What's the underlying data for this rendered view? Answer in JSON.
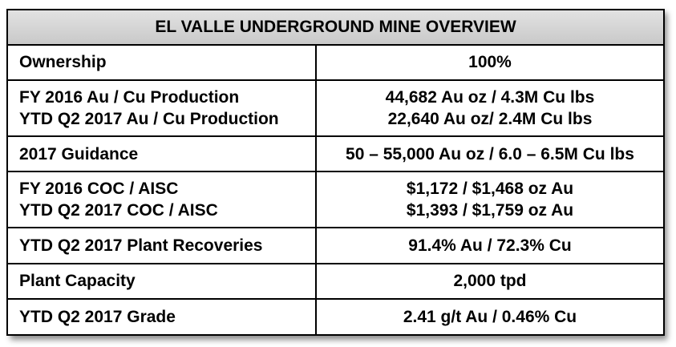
{
  "table": {
    "title": "EL VALLE UNDERGROUND MINE OVERVIEW",
    "rows": [
      {
        "label": [
          "Ownership"
        ],
        "value": [
          "100%"
        ]
      },
      {
        "label": [
          "FY 2016 Au / Cu Production",
          "YTD Q2 2017 Au / Cu Production"
        ],
        "value": [
          "44,682 Au oz / 4.3M Cu lbs",
          "22,640 Au oz/ 2.4M Cu lbs"
        ]
      },
      {
        "label": [
          "2017 Guidance"
        ],
        "value": [
          "50 – 55,000 Au oz / 6.0 – 6.5M Cu lbs"
        ]
      },
      {
        "label": [
          "FY 2016 COC / AISC",
          "YTD Q2 2017 COC / AISC"
        ],
        "value": [
          "$1,172 / $1,468 oz Au",
          "$1,393 / $1,759 oz Au"
        ]
      },
      {
        "label": [
          "YTD Q2 2017 Plant Recoveries"
        ],
        "value": [
          "91.4% Au / 72.3% Cu"
        ]
      },
      {
        "label": [
          "Plant Capacity"
        ],
        "value": [
          "2,000 tpd"
        ]
      },
      {
        "label": [
          "YTD Q2 2017 Grade"
        ],
        "value": [
          "2.41 g/t Au / 0.46% Cu"
        ]
      }
    ]
  }
}
